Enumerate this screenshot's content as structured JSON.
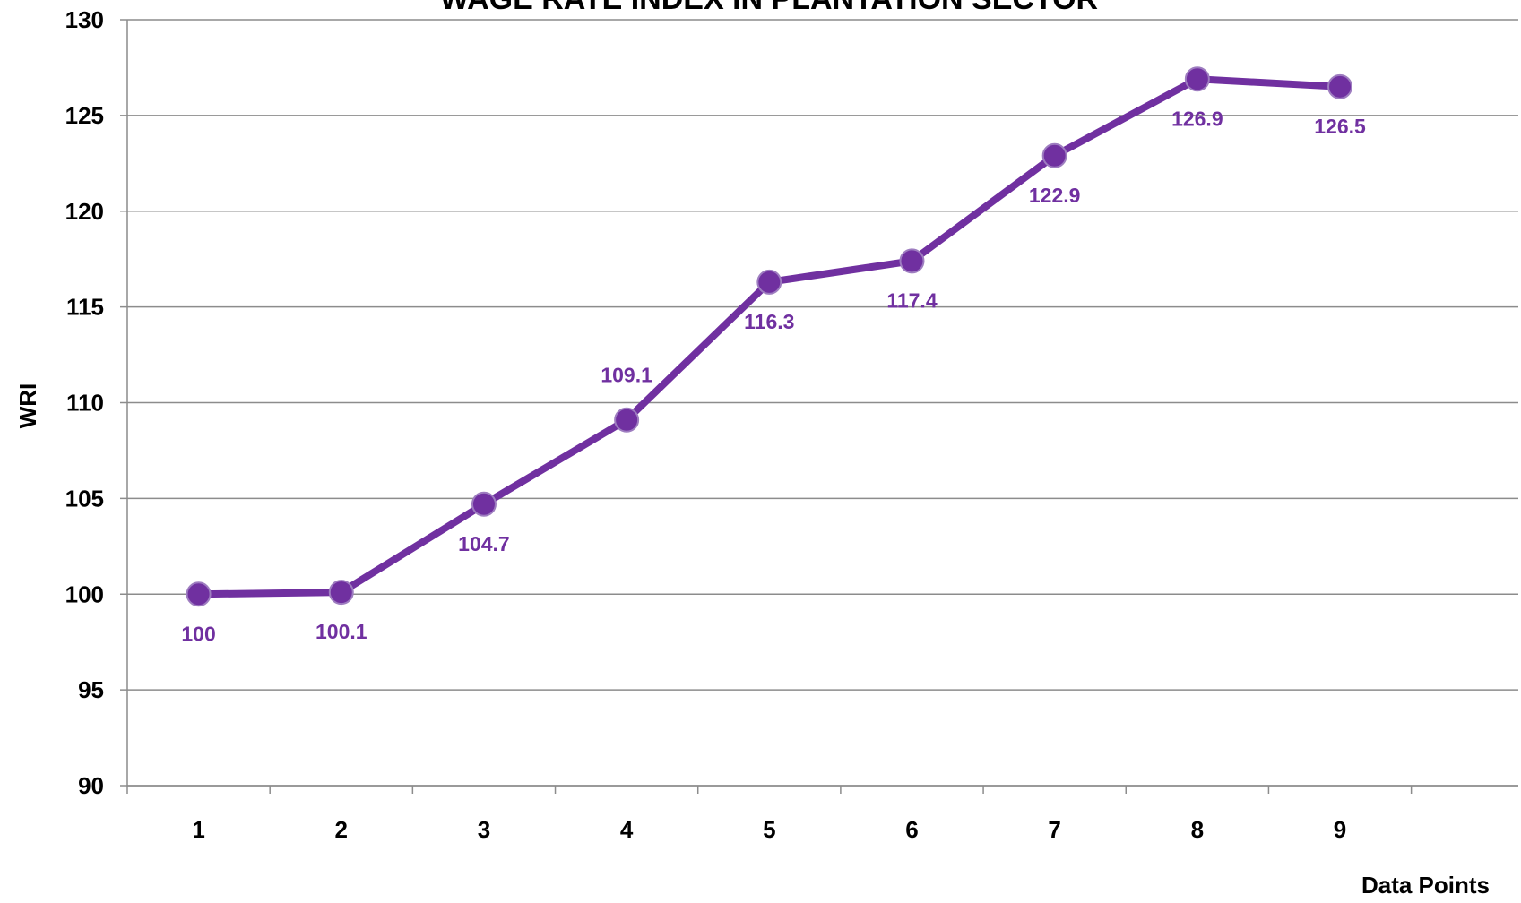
{
  "chart_data": {
    "type": "line",
    "title": "WAGE RATE INDEX IN PLANTATION SECTOR",
    "xlabel": "Data Points",
    "ylabel": "WRI",
    "categories": [
      "1",
      "2",
      "3",
      "4",
      "5",
      "6",
      "7",
      "8",
      "9"
    ],
    "series": [
      {
        "values": [
          100,
          100.1,
          104.7,
          109.1,
          116.3,
          117.4,
          122.9,
          126.9,
          126.5
        ],
        "color": "#7030a0"
      }
    ],
    "data_labels": [
      "100",
      "100.1",
      "104.7",
      "109.1",
      "116.3",
      "117.4",
      "122.9",
      "126.9",
      "126.5"
    ],
    "y_ticks": [
      "90",
      "95",
      "100",
      "105",
      "110",
      "115",
      "120",
      "125",
      "130"
    ],
    "ylim": [
      90,
      130
    ],
    "grid": true,
    "legend": "none"
  }
}
